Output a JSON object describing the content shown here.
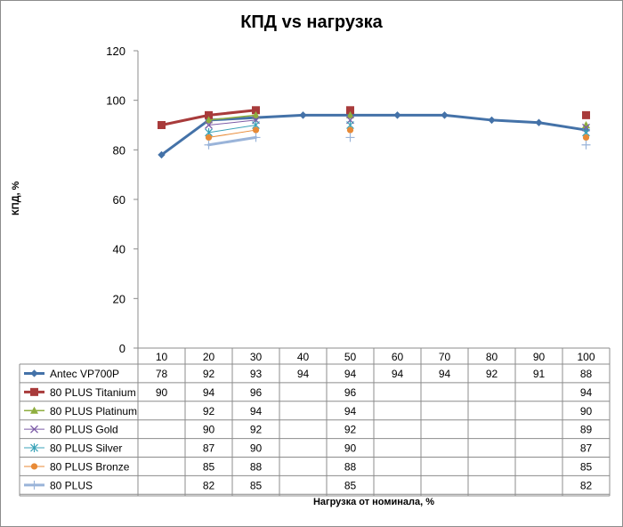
{
  "chart_data": {
    "type": "line",
    "title": "КПД vs нагрузка",
    "xlabel": "Нагрузка  от номинала,  %",
    "ylabel": "КПД, %",
    "ylim": [
      0,
      120
    ],
    "yticks": [
      "0",
      "20",
      "40",
      "60",
      "80",
      "100",
      "120"
    ],
    "categories": [
      "10",
      "20",
      "30",
      "40",
      "50",
      "60",
      "70",
      "80",
      "90",
      "100"
    ],
    "legend_position": "data-table",
    "grid": false,
    "series": [
      {
        "name": "Antec VP700P",
        "color": "#4472a8",
        "marker": "diamond",
        "line": true,
        "values": [
          78,
          92,
          93,
          94,
          94,
          94,
          94,
          92,
          91,
          88
        ]
      },
      {
        "name": "80 PLUS Titanium",
        "color": "#a83b3b",
        "marker": "square",
        "line": true,
        "values": [
          90,
          94,
          96,
          null,
          96,
          null,
          null,
          null,
          null,
          94
        ]
      },
      {
        "name": "80 PLUS Platinum",
        "color": "#8fae3f",
        "marker": "triangle",
        "line": true,
        "values": [
          null,
          92,
          94,
          null,
          94,
          null,
          null,
          null,
          null,
          90
        ]
      },
      {
        "name": "80 PLUS Gold",
        "color": "#7c5ba6",
        "marker": "x",
        "line": true,
        "values": [
          null,
          90,
          92,
          null,
          92,
          null,
          null,
          null,
          null,
          89
        ]
      },
      {
        "name": "80 PLUS Silver",
        "color": "#3ba3b8",
        "marker": "star",
        "line": true,
        "values": [
          null,
          87,
          90,
          null,
          90,
          null,
          null,
          null,
          null,
          87
        ]
      },
      {
        "name": "80 PLUS Bronze",
        "color": "#e88a36",
        "marker": "circle",
        "line": true,
        "values": [
          null,
          85,
          88,
          null,
          88,
          null,
          null,
          null,
          null,
          85
        ]
      },
      {
        "name": "80 PLUS",
        "color": "#9ab4d9",
        "marker": "plus",
        "line": true,
        "values": [
          null,
          82,
          85,
          null,
          85,
          null,
          null,
          null,
          null,
          82
        ]
      }
    ]
  }
}
